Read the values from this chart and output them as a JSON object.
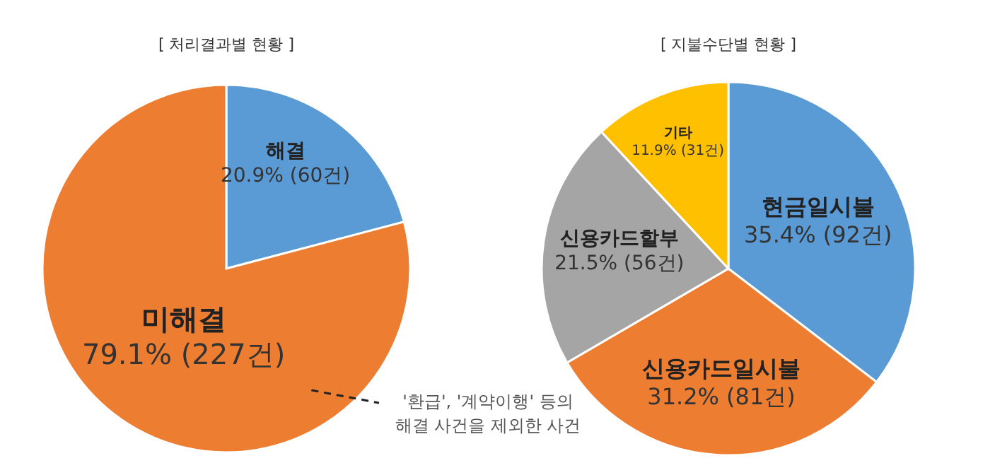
{
  "chart_data": [
    {
      "type": "pie",
      "title": "[ 처리결과별 현황 ]",
      "categories": [
        "해결",
        "미해결"
      ],
      "values": [
        20.9,
        79.1
      ],
      "colors": [
        "#5b9bd5",
        "#ed7d31"
      ],
      "value_labels": [
        "20.9% (60건)",
        "79.1% (227건)"
      ],
      "annotations": [
        "'환급', '계약이행' 등의 해결 사건을 제외한 사건"
      ]
    },
    {
      "type": "pie",
      "title": "[ 지불수단별 현황 ]",
      "categories": [
        "현금일시불",
        "신용카드일시불",
        "신용카드할부",
        "기타"
      ],
      "values": [
        35.4,
        31.2,
        21.5,
        11.9
      ],
      "colors": [
        "#5b9bd5",
        "#ed7d31",
        "#a5a5a5",
        "#ffc000"
      ],
      "value_labels": [
        "35.4% (92건)",
        "31.2% (81건)",
        "21.5% (56건)",
        "11.9% (31건)"
      ]
    }
  ]
}
